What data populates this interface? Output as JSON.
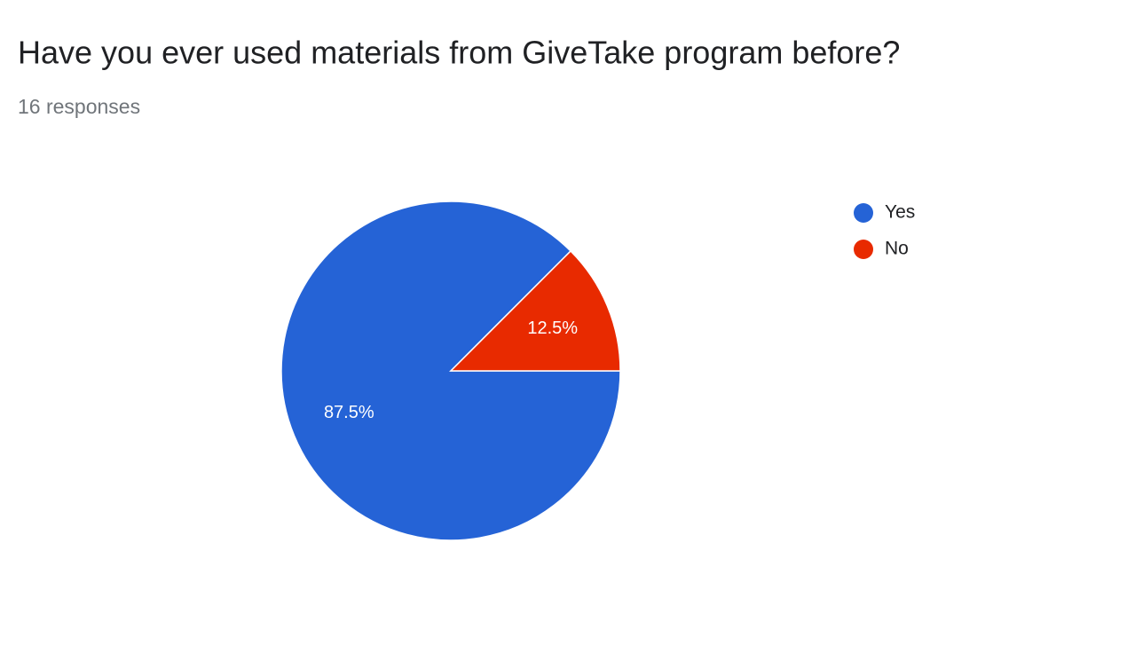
{
  "chart_data": {
    "type": "pie",
    "title": "Have you ever used materials from GiveTake program before?",
    "subtitle": "16 responses",
    "categories": [
      "Yes",
      "No"
    ],
    "values": [
      87.5,
      12.5
    ],
    "value_labels": [
      "87.5%",
      "12.5%"
    ],
    "colors": [
      "#2563d6",
      "#e82a00"
    ],
    "legend": "right"
  }
}
